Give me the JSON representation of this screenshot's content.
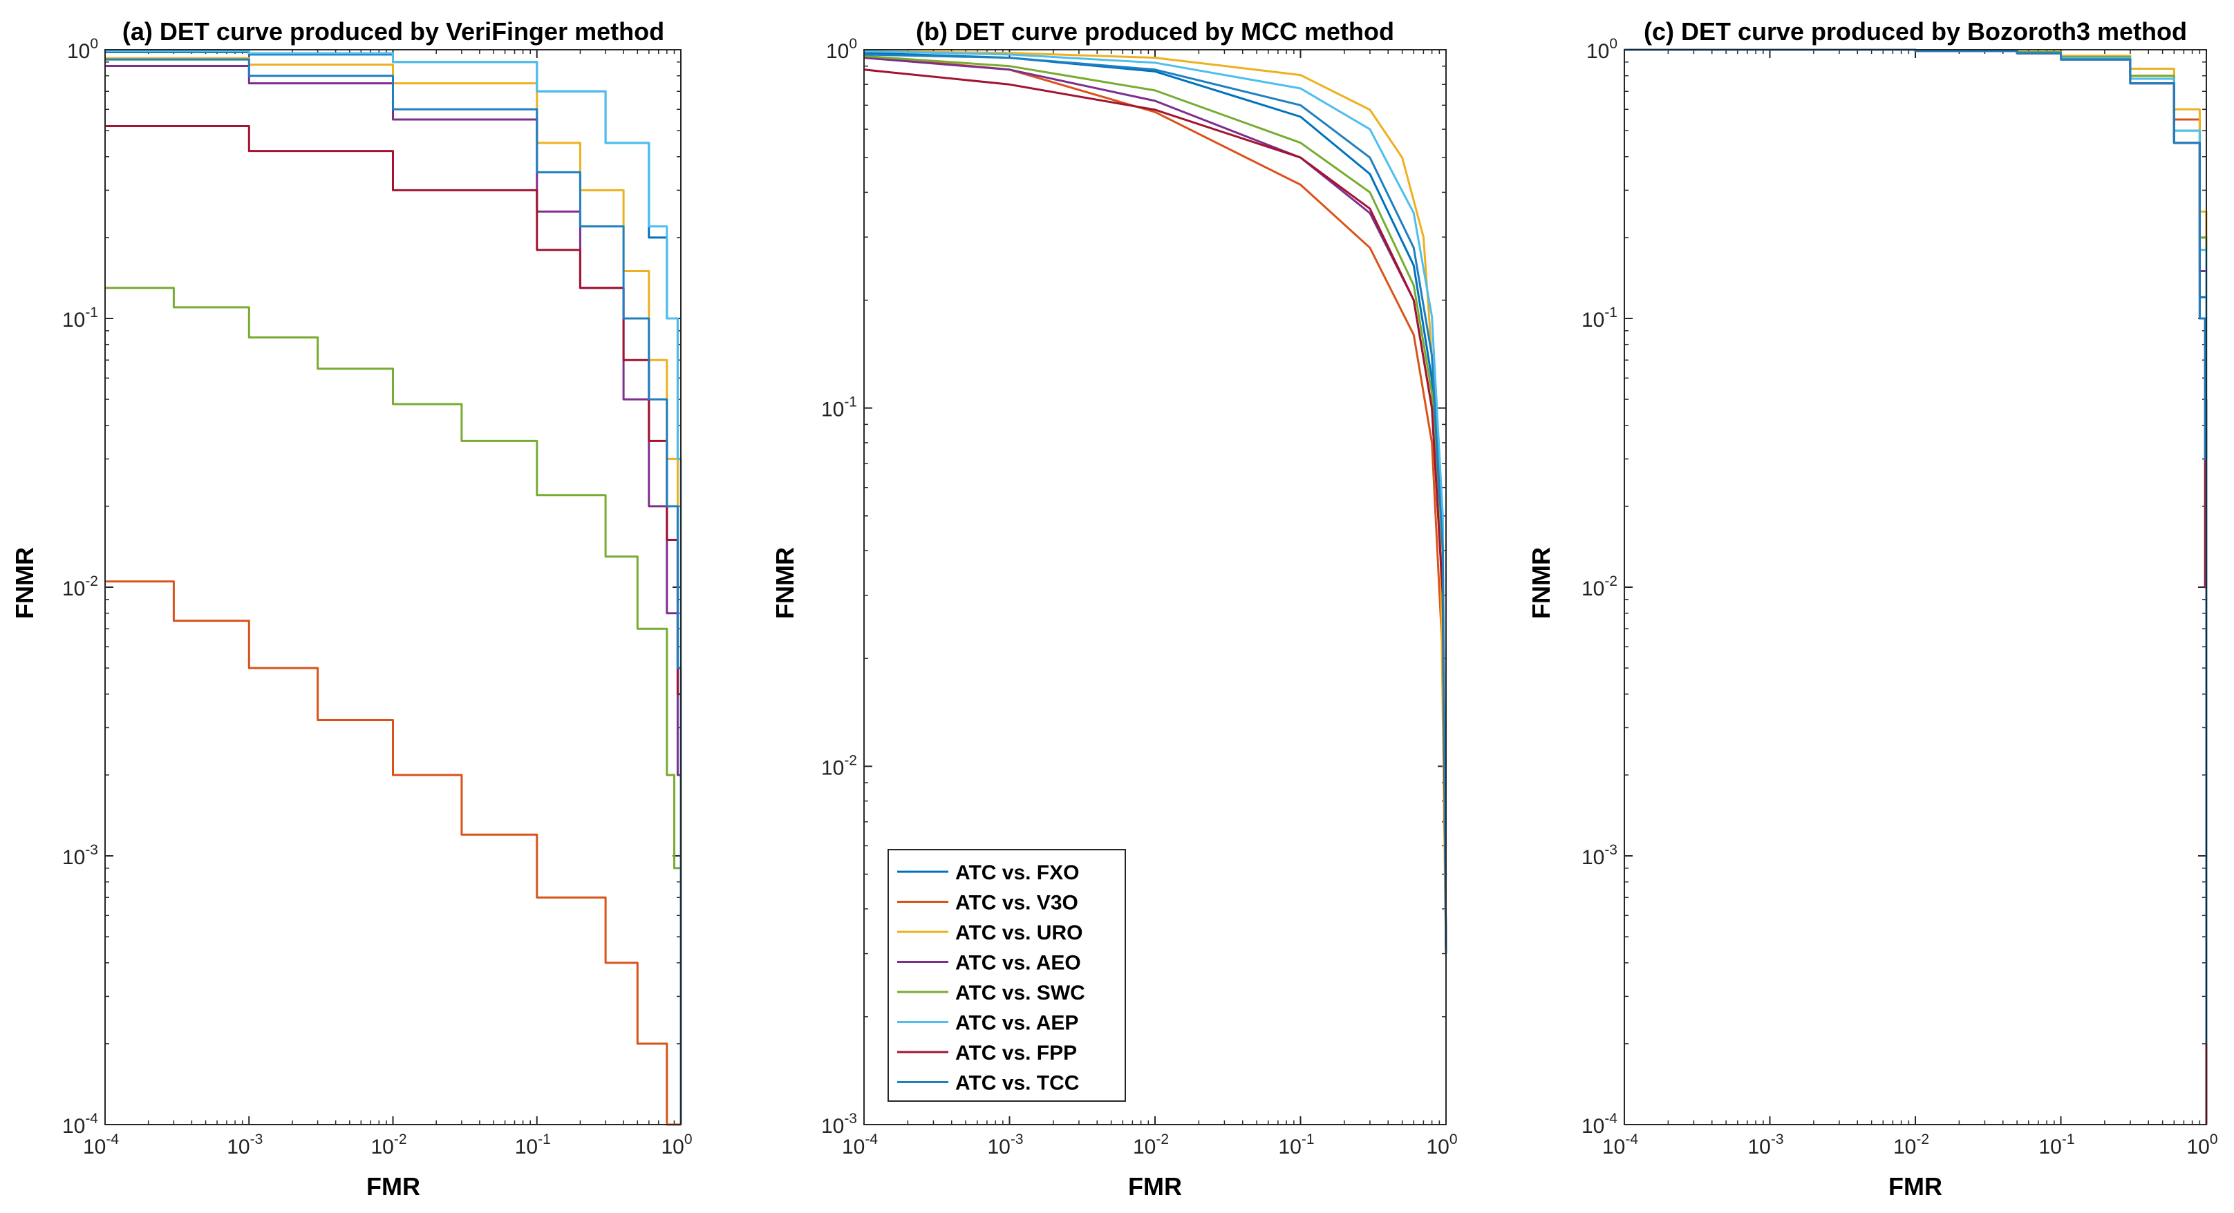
{
  "figure": {
    "legend_entries": [
      "ATC vs. FXO",
      "ATC vs. V3O",
      "ATC vs. URO",
      "ATC vs. AEO",
      "ATC vs. SWC",
      "ATC vs. AEP",
      "ATC vs. FPP",
      "ATC vs. TCC"
    ],
    "series_colors": [
      "#0072BD",
      "#D95319",
      "#EDB120",
      "#7E2F8E",
      "#77AC30",
      "#4DBEEE",
      "#A2142F",
      "#1F7FC0"
    ]
  },
  "chart_data": [
    {
      "type": "line",
      "title": "(a) DET curve produced by VeriFinger method",
      "xlabel": "FMR",
      "ylabel": "FNMR",
      "xscale": "log",
      "yscale": "log",
      "xlim": [
        0.0001,
        1
      ],
      "ylim": [
        0.0001,
        1
      ],
      "xticks": {
        "base": "10",
        "exps": [
          "-4",
          "-3",
          "-2",
          "-1",
          "0"
        ],
        "values": [
          0.0001,
          0.001,
          0.01,
          0.1,
          1
        ]
      },
      "yticks": {
        "base": "10",
        "exps": [
          "-4",
          "-3",
          "-2",
          "-1",
          "0"
        ],
        "values": [
          0.0001,
          0.001,
          0.01,
          0.1,
          1
        ]
      },
      "stairs": true,
      "series": [
        {
          "name": "ATC vs. FXO",
          "x": [
            0.0001,
            0.001,
            0.01,
            0.1,
            0.3,
            0.6,
            0.8,
            0.95,
            1
          ],
          "y": [
            0.98,
            0.96,
            0.9,
            0.7,
            0.45,
            0.2,
            0.1,
            0.03,
            0.0001
          ]
        },
        {
          "name": "ATC vs. V3O",
          "x": [
            0.0001,
            0.0003,
            0.001,
            0.003,
            0.01,
            0.03,
            0.1,
            0.3,
            0.5,
            0.8,
            1
          ],
          "y": [
            0.0105,
            0.0075,
            0.005,
            0.0032,
            0.002,
            0.0012,
            0.0007,
            0.0004,
            0.0002,
            0.0001,
            0.0001
          ]
        },
        {
          "name": "ATC vs. URO",
          "x": [
            0.0001,
            0.001,
            0.01,
            0.1,
            0.2,
            0.4,
            0.6,
            0.8,
            0.95,
            1
          ],
          "y": [
            0.93,
            0.88,
            0.75,
            0.45,
            0.3,
            0.15,
            0.07,
            0.03,
            0.005,
            0.0001
          ]
        },
        {
          "name": "ATC vs. AEO",
          "x": [
            0.0001,
            0.001,
            0.01,
            0.1,
            0.2,
            0.4,
            0.6,
            0.8,
            0.95,
            1
          ],
          "y": [
            0.87,
            0.75,
            0.55,
            0.25,
            0.13,
            0.05,
            0.02,
            0.008,
            0.002,
            0.0001
          ]
        },
        {
          "name": "ATC vs. SWC",
          "x": [
            0.0001,
            0.0003,
            0.001,
            0.003,
            0.01,
            0.03,
            0.1,
            0.3,
            0.5,
            0.8,
            0.9,
            1
          ],
          "y": [
            0.13,
            0.11,
            0.085,
            0.065,
            0.048,
            0.035,
            0.022,
            0.013,
            0.007,
            0.002,
            0.0009,
            0.0001
          ]
        },
        {
          "name": "ATC vs. AEP",
          "x": [
            0.0001,
            0.001,
            0.01,
            0.1,
            0.3,
            0.6,
            0.8,
            0.95,
            1
          ],
          "y": [
            0.99,
            0.97,
            0.9,
            0.7,
            0.45,
            0.22,
            0.1,
            0.03,
            0.0001
          ]
        },
        {
          "name": "ATC vs. FPP",
          "x": [
            0.0001,
            0.001,
            0.01,
            0.1,
            0.2,
            0.4,
            0.6,
            0.8,
            0.95,
            1
          ],
          "y": [
            0.52,
            0.42,
            0.3,
            0.18,
            0.13,
            0.07,
            0.035,
            0.015,
            0.004,
            0.0001
          ]
        },
        {
          "name": "ATC vs. TCC",
          "x": [
            0.0001,
            0.001,
            0.01,
            0.1,
            0.2,
            0.4,
            0.6,
            0.8,
            0.95,
            1
          ],
          "y": [
            0.92,
            0.8,
            0.6,
            0.35,
            0.22,
            0.1,
            0.05,
            0.02,
            0.005,
            0.0001
          ]
        }
      ]
    },
    {
      "type": "line",
      "title": "(b) DET curve produced by MCC method",
      "xlabel": "FMR",
      "ylabel": "FNMR",
      "xscale": "log",
      "yscale": "log",
      "xlim": [
        0.0001,
        1
      ],
      "ylim": [
        0.001,
        1
      ],
      "xticks": {
        "base": "10",
        "exps": [
          "-4",
          "-3",
          "-2",
          "-1",
          "0"
        ],
        "values": [
          0.0001,
          0.001,
          0.01,
          0.1,
          1
        ]
      },
      "yticks": {
        "base": "10",
        "exps": [
          "-3",
          "-2",
          "-1",
          "0"
        ],
        "values": [
          0.001,
          0.01,
          0.1,
          1
        ]
      },
      "stairs": false,
      "legend": {
        "position": "bottom-left"
      },
      "series": [
        {
          "name": "ATC vs. FXO",
          "x": [
            0.0001,
            0.001,
            0.01,
            0.1,
            0.3,
            0.6,
            0.8,
            0.95,
            1
          ],
          "y": [
            0.98,
            0.95,
            0.87,
            0.65,
            0.45,
            0.25,
            0.12,
            0.03,
            0.003
          ]
        },
        {
          "name": "ATC vs. V3O",
          "x": [
            0.0001,
            0.001,
            0.01,
            0.1,
            0.3,
            0.6,
            0.8,
            0.95,
            1
          ],
          "y": [
            0.96,
            0.88,
            0.67,
            0.42,
            0.28,
            0.16,
            0.08,
            0.02,
            0.003
          ]
        },
        {
          "name": "ATC vs. URO",
          "x": [
            0.0001,
            0.001,
            0.01,
            0.1,
            0.3,
            0.5,
            0.7,
            0.9,
            1
          ],
          "y": [
            0.99,
            0.98,
            0.95,
            0.85,
            0.68,
            0.5,
            0.3,
            0.07,
            0.003
          ]
        },
        {
          "name": "ATC vs. AEO",
          "x": [
            0.0001,
            0.001,
            0.01,
            0.1,
            0.3,
            0.6,
            0.8,
            0.95,
            1
          ],
          "y": [
            0.95,
            0.88,
            0.72,
            0.5,
            0.35,
            0.2,
            0.1,
            0.03,
            0.003
          ]
        },
        {
          "name": "ATC vs. SWC",
          "x": [
            0.0001,
            0.001,
            0.01,
            0.1,
            0.3,
            0.6,
            0.8,
            0.95,
            1
          ],
          "y": [
            0.96,
            0.9,
            0.77,
            0.55,
            0.4,
            0.22,
            0.11,
            0.03,
            0.003
          ]
        },
        {
          "name": "ATC vs. AEP",
          "x": [
            0.0001,
            0.001,
            0.01,
            0.1,
            0.3,
            0.6,
            0.8,
            0.95,
            1
          ],
          "y": [
            0.99,
            0.97,
            0.92,
            0.78,
            0.6,
            0.35,
            0.18,
            0.05,
            0.003
          ]
        },
        {
          "name": "ATC vs. FPP",
          "x": [
            0.0001,
            0.001,
            0.01,
            0.1,
            0.3,
            0.6,
            0.8,
            0.95,
            1
          ],
          "y": [
            0.88,
            0.8,
            0.68,
            0.5,
            0.36,
            0.2,
            0.1,
            0.03,
            0.003
          ]
        },
        {
          "name": "ATC vs. TCC",
          "x": [
            0.0001,
            0.001,
            0.01,
            0.1,
            0.3,
            0.6,
            0.8,
            0.95,
            1
          ],
          "y": [
            0.97,
            0.95,
            0.88,
            0.7,
            0.5,
            0.28,
            0.14,
            0.04,
            0.003
          ]
        }
      ]
    },
    {
      "type": "line",
      "title": "(c) DET curve produced by Bozoroth3 method",
      "xlabel": "FMR",
      "ylabel": "FNMR",
      "xscale": "log",
      "yscale": "log",
      "xlim": [
        0.0001,
        1
      ],
      "ylim": [
        0.0001,
        1
      ],
      "xticks": {
        "base": "10",
        "exps": [
          "-4",
          "-3",
          "-2",
          "-1",
          "0"
        ],
        "values": [
          0.0001,
          0.001,
          0.01,
          0.1,
          1
        ]
      },
      "yticks": {
        "base": "10",
        "exps": [
          "-4",
          "-3",
          "-2",
          "-1",
          "0"
        ],
        "values": [
          0.0001,
          0.001,
          0.01,
          0.1,
          1
        ]
      },
      "stairs": true,
      "series": [
        {
          "name": "ATC vs. FXO",
          "x": [
            0.0001,
            0.01,
            0.05,
            0.1,
            0.3,
            0.6,
            0.9,
            1
          ],
          "y": [
            1,
            0.99,
            0.97,
            0.92,
            0.75,
            0.45,
            0.12,
            0.03
          ]
        },
        {
          "name": "ATC vs. V3O",
          "x": [
            0.0001,
            0.01,
            0.05,
            0.1,
            0.3,
            0.6,
            0.9,
            1
          ],
          "y": [
            1,
            0.99,
            0.97,
            0.93,
            0.8,
            0.55,
            0.2,
            0.1
          ]
        },
        {
          "name": "ATC vs. URO",
          "x": [
            0.0001,
            0.01,
            0.05,
            0.1,
            0.3,
            0.6,
            0.9,
            1
          ],
          "y": [
            1,
            0.99,
            0.98,
            0.95,
            0.85,
            0.6,
            0.25,
            0.1
          ]
        },
        {
          "name": "ATC vs. AEO",
          "x": [
            0.0001,
            0.01,
            0.05,
            0.1,
            0.3,
            0.6,
            0.9,
            1
          ],
          "y": [
            1,
            0.99,
            0.97,
            0.92,
            0.75,
            0.45,
            0.15,
            0.05
          ]
        },
        {
          "name": "ATC vs. SWC",
          "x": [
            0.0001,
            0.01,
            0.05,
            0.1,
            0.3,
            0.6,
            0.9,
            1
          ],
          "y": [
            1,
            0.99,
            0.98,
            0.94,
            0.8,
            0.5,
            0.2,
            0.06
          ]
        },
        {
          "name": "ATC vs. AEP",
          "x": [
            0.0001,
            0.01,
            0.05,
            0.1,
            0.3,
            0.6,
            0.9,
            1
          ],
          "y": [
            1,
            0.99,
            0.97,
            0.93,
            0.78,
            0.5,
            0.18,
            0.05
          ]
        },
        {
          "name": "ATC vs. FPP",
          "x": [
            0.0001,
            0.01,
            0.05,
            0.1,
            0.3,
            0.6,
            0.9,
            0.98,
            1
          ],
          "y": [
            1,
            0.99,
            0.97,
            0.92,
            0.75,
            0.45,
            0.1,
            0.01,
            0.0001
          ]
        },
        {
          "name": "ATC vs. TCC",
          "x": [
            0.0001,
            0.01,
            0.05,
            0.1,
            0.3,
            0.6,
            0.9,
            0.98,
            1
          ],
          "y": [
            1,
            0.99,
            0.97,
            0.92,
            0.75,
            0.45,
            0.1,
            0.03,
            0.0002
          ]
        }
      ]
    }
  ]
}
